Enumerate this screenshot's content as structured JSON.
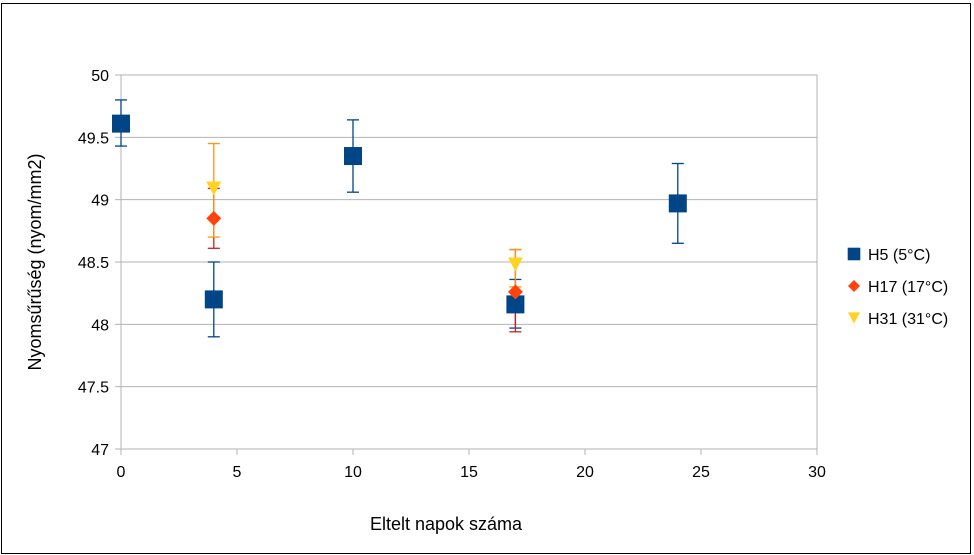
{
  "chart_data": {
    "type": "scatter",
    "title": "",
    "xlabel": "Eltelt napok száma",
    "ylabel": "Nyomsűrűség (nyom/mm2)",
    "xlim": [
      0,
      30
    ],
    "ylim": [
      47,
      50
    ],
    "xticks": [
      0,
      5,
      10,
      15,
      20,
      25,
      30
    ],
    "yticks": [
      47,
      47.5,
      48,
      48.5,
      49,
      49.5,
      50
    ],
    "ytick_labels": [
      "47",
      "47.5",
      "48",
      "48.5",
      "49",
      "49.5",
      "50"
    ],
    "grid": "horizontal",
    "legend_position": "right",
    "error_bars": true,
    "series": [
      {
        "name": "H5 (5°C)",
        "color": "#004586",
        "marker": "square",
        "x": [
          0,
          4,
          10,
          17,
          24
        ],
        "y": [
          49.61,
          48.2,
          49.35,
          48.16,
          48.97
        ],
        "err_low": [
          49.43,
          47.9,
          49.06,
          47.97,
          48.65
        ],
        "err_high": [
          49.8,
          48.5,
          49.64,
          48.36,
          49.29
        ]
      },
      {
        "name": "H17 (17°C)",
        "color": "#ff420e",
        "errcolor": "#c9211e",
        "marker": "diamond",
        "x": [
          4,
          17
        ],
        "y": [
          48.85,
          48.26
        ],
        "err_low": [
          48.61,
          47.94
        ],
        "err_high": [
          49.09,
          48.6
        ]
      },
      {
        "name": "H31 (31°C)",
        "color": "#ffd320",
        "errcolor": "#ff950e",
        "marker": "triangle-down",
        "x": [
          4,
          17
        ],
        "y": [
          49.09,
          48.48
        ],
        "err_low": [
          48.7,
          48.3
        ],
        "err_high": [
          49.45,
          48.6
        ]
      }
    ]
  }
}
